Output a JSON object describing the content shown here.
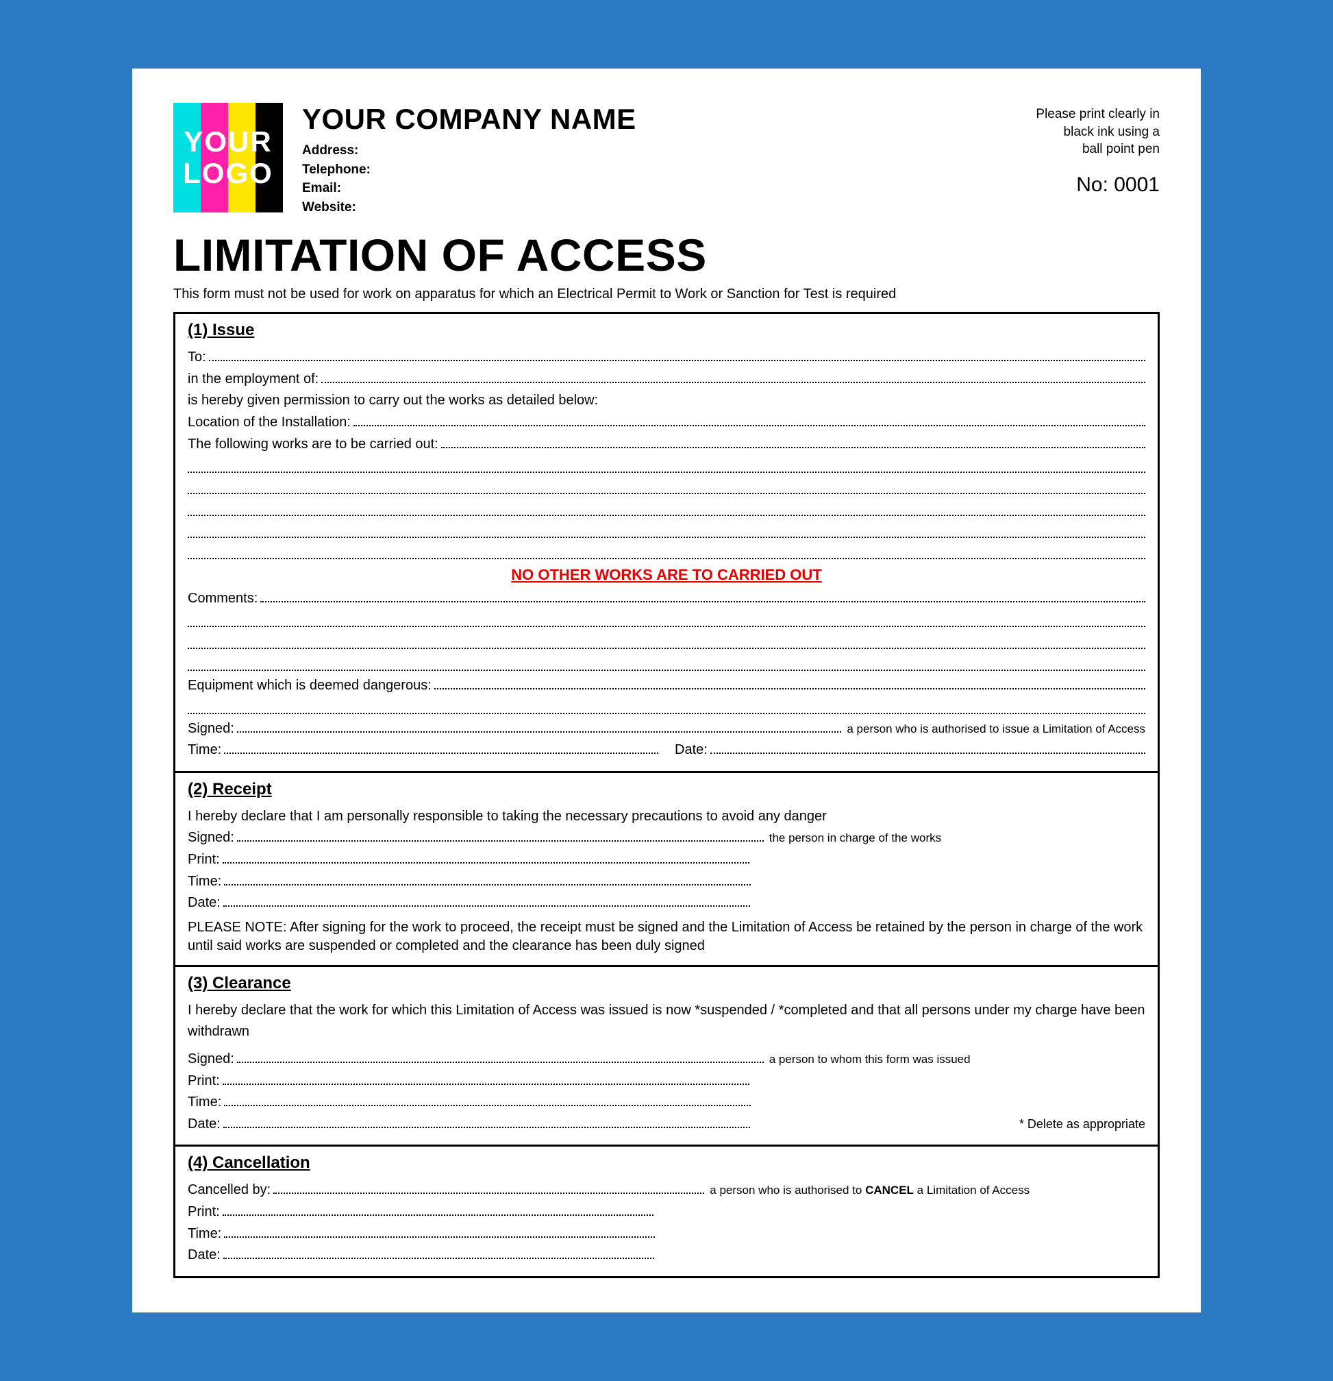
{
  "colors": {
    "page_bg": "#2d7bc4",
    "paper_bg": "#ffffff",
    "text": "#000000",
    "border": "#000000",
    "warn": "#e60000",
    "logo_bars": [
      "#00e0e0",
      "#ff1fa8",
      "#ffe600",
      "#000000"
    ],
    "logo_text": "#ffffff"
  },
  "logo": {
    "line1": "YOUR",
    "line2": "LOGO"
  },
  "header": {
    "company": "YOUR COMPANY NAME",
    "fields": {
      "address": "Address:",
      "telephone": "Telephone:",
      "email": "Email:",
      "website": "Website:"
    },
    "print_note_l1": "Please print clearly in",
    "print_note_l2": "black ink using a",
    "print_note_l3": "ball point pen",
    "number_label": "No:",
    "number_value": "0001"
  },
  "title": "LIMITATION OF ACCESS",
  "subtitle": "This form must not be used for work on apparatus for which an Electrical Permit to Work or Sanction for Test is required",
  "s1": {
    "heading": "(1) Issue",
    "to": "To:",
    "employment": "in the employment of:",
    "permission": "is hereby given permission to carry out the works as detailed below:",
    "location": "Location of the Installation:",
    "works": "The following works are to be carried out:",
    "warn": "NO OTHER WORKS ARE TO CARRIED OUT",
    "comments": "Comments:",
    "equipment": "Equipment which is deemed dangerous:",
    "signed": "Signed:",
    "signed_trail": "a person who is authorised to issue a Limitation of Access",
    "time": "Time:",
    "date": "Date:",
    "blank_rows_works": 5,
    "blank_rows_comments": 3,
    "blank_rows_equipment": 1
  },
  "s2": {
    "heading": "(2) Receipt",
    "declare": "I hereby declare that I am personally responsible to taking the necessary precautions to avoid any danger",
    "signed": "Signed:",
    "signed_trail": "the person in charge of the works",
    "print": "Print:",
    "time": "Time:",
    "date": "Date:",
    "note": "PLEASE NOTE: After signing for the work to proceed, the receipt must be signed and the Limitation of Access be retained by the person in charge of the work until said works are suspended or completed and the clearance has been duly signed",
    "half_width_pct": 55
  },
  "s3": {
    "heading": "(3) Clearance",
    "declare": "I hereby declare that the work for which this Limitation of Access was issued is now *suspended / *completed and that all persons under my charge have been withdrawn",
    "signed": "Signed:",
    "signed_trail": "a person to whom this form was issued",
    "print": "Print:",
    "time": "Time:",
    "date": "Date:",
    "delete_note": "* Delete as appropriate",
    "half_width_pct": 55
  },
  "s4": {
    "heading": "(4) Cancellation",
    "cancelled": "Cancelled by:",
    "cancel_trail_pre": "a person who is authorised to ",
    "cancel_trail_bold": "CANCEL",
    "cancel_trail_post": " a Limitation of Access",
    "print": "Print:",
    "time": "Time:",
    "date": "Date:",
    "half_width_pct": 45
  }
}
